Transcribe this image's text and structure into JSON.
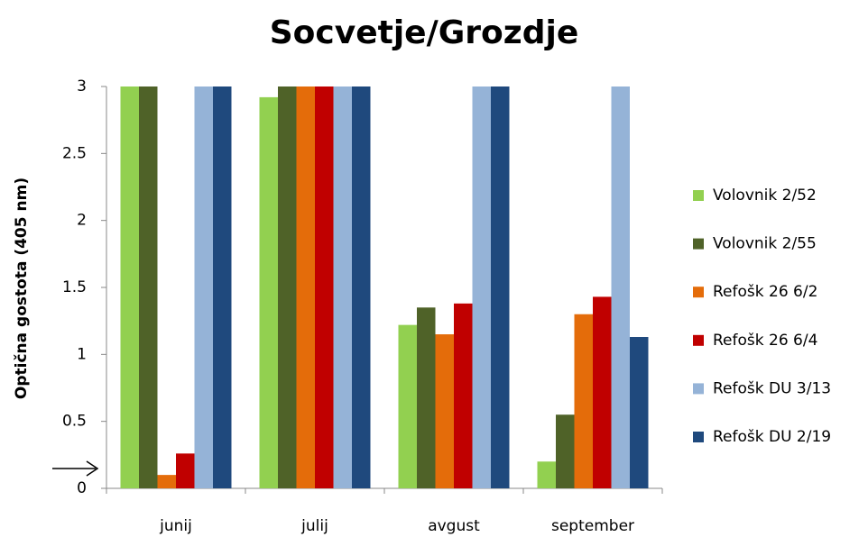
{
  "chart_data": {
    "type": "bar",
    "title": "Socvetje/Grozdje",
    "y_label": "Optična gostota (405 nm)",
    "categories": [
      "junij",
      "julij",
      "avgust",
      "september"
    ],
    "series": [
      {
        "name": "Volovnik 2/52",
        "color": "#92d050",
        "values": [
          3,
          2.92,
          1.22,
          0.2
        ]
      },
      {
        "name": "Volovnik 2/55",
        "color": "#4f6228",
        "values": [
          3,
          3,
          1.35,
          0.55
        ]
      },
      {
        "name": "Refošk 26 6/2",
        "color": "#e46c0a",
        "values": [
          0.1,
          3,
          1.15,
          1.3
        ]
      },
      {
        "name": "Refošk 26 6/4",
        "color": "#c00000",
        "values": [
          0.26,
          3,
          1.38,
          1.43
        ]
      },
      {
        "name": "Refošk DU 3/13",
        "color": "#95b3d7",
        "values": [
          3,
          3,
          3,
          3
        ]
      },
      {
        "name": "Refošk DU 2/19",
        "color": "#1f497d",
        "values": [
          3,
          3,
          3,
          1.13
        ]
      }
    ],
    "ylim": [
      0,
      3
    ],
    "yticks": [
      0,
      0.5,
      1,
      1.5,
      2,
      2.5,
      3
    ],
    "legend": "right"
  }
}
